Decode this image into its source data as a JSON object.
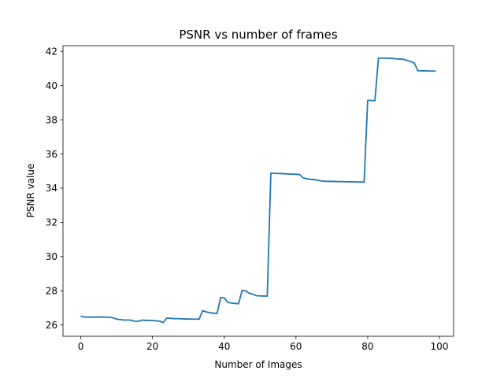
{
  "chart_data": {
    "type": "line",
    "title": "PSNR vs number of frames",
    "xlabel": "Number of Images",
    "ylabel": "PSNR value",
    "xlim": [
      -4.95,
      103.95
    ],
    "ylim": [
      25.34,
      42.33
    ],
    "xticks": [
      0,
      20,
      40,
      60,
      80,
      100
    ],
    "yticks": [
      26,
      28,
      30,
      32,
      34,
      36,
      38,
      40,
      42
    ],
    "grid": false,
    "legend": "none",
    "line_color": "#1f77b4",
    "series": [
      {
        "x": [
          0,
          1,
          2,
          3,
          4,
          5,
          6,
          7,
          8,
          9,
          10,
          11,
          12,
          13,
          14,
          15,
          16,
          17,
          18,
          19,
          20,
          21,
          22,
          23,
          24,
          25,
          26,
          27,
          28,
          29,
          30,
          31,
          32,
          33,
          34,
          35,
          36,
          37,
          38,
          39,
          40,
          41,
          42,
          43,
          44,
          45,
          46,
          47,
          48,
          49,
          50,
          51,
          52,
          53,
          54,
          55,
          56,
          57,
          58,
          59,
          60,
          61,
          62,
          63,
          64,
          65,
          66,
          67,
          68,
          69,
          70,
          71,
          72,
          73,
          74,
          75,
          76,
          77,
          78,
          79,
          80,
          81,
          82,
          83,
          84,
          85,
          86,
          87,
          88,
          89,
          90,
          91,
          92,
          93,
          94,
          95,
          96,
          97,
          98,
          99
        ],
        "values": [
          26.51,
          26.47,
          26.46,
          26.46,
          26.46,
          26.47,
          26.46,
          26.46,
          26.45,
          26.42,
          26.34,
          26.32,
          26.29,
          26.29,
          26.28,
          26.22,
          26.21,
          26.28,
          26.27,
          26.27,
          26.26,
          26.24,
          26.22,
          26.14,
          26.41,
          26.39,
          26.37,
          26.37,
          26.36,
          26.35,
          26.35,
          26.34,
          26.34,
          26.34,
          26.84,
          26.76,
          26.72,
          26.69,
          26.67,
          27.6,
          27.58,
          27.32,
          27.28,
          27.26,
          27.24,
          28.02,
          28.0,
          27.85,
          27.8,
          27.71,
          27.7,
          27.69,
          27.69,
          34.87,
          34.87,
          34.86,
          34.85,
          34.84,
          34.82,
          34.82,
          34.81,
          34.8,
          34.6,
          34.55,
          34.52,
          34.5,
          34.47,
          34.42,
          34.4,
          34.4,
          34.39,
          34.39,
          34.38,
          34.38,
          34.37,
          34.37,
          34.37,
          34.36,
          34.36,
          34.36,
          39.13,
          39.13,
          39.11,
          41.6,
          41.6,
          41.6,
          41.59,
          41.58,
          41.56,
          41.55,
          41.53,
          41.47,
          41.4,
          41.31,
          40.87,
          40.86,
          40.86,
          40.85,
          40.85,
          40.84
        ]
      }
    ]
  }
}
